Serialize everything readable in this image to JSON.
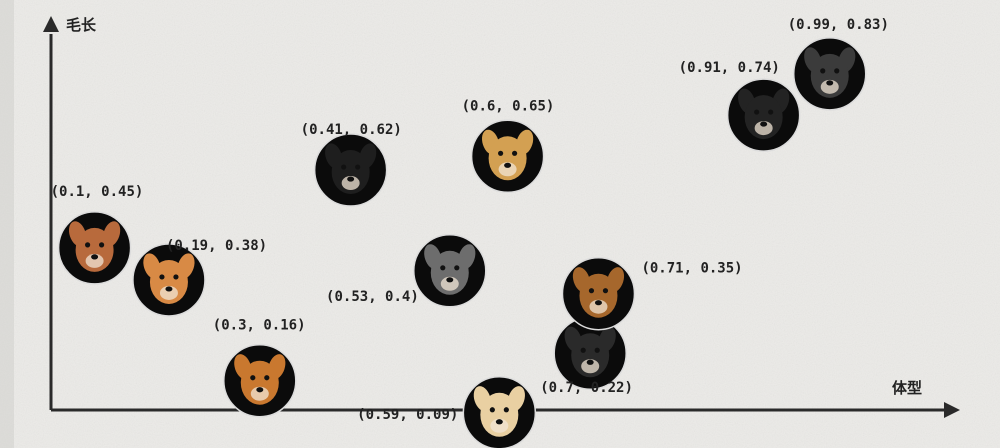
{
  "chart_data": {
    "type": "scatter",
    "xlabel": "体型",
    "ylabel": "毛长",
    "xlim": [
      0,
      1
    ],
    "ylim": [
      0,
      1
    ],
    "grid": false,
    "points": [
      {
        "label": "(0.1, 0.45)",
        "x": 0.1,
        "y": 0.45,
        "icon": "poodle-icon",
        "fur": "#b86a3c"
      },
      {
        "label": "(0.19, 0.38)",
        "x": 0.19,
        "y": 0.38,
        "icon": "corgi-icon",
        "fur": "#d88a45"
      },
      {
        "label": "(0.3, 0.16)",
        "x": 0.3,
        "y": 0.16,
        "icon": "shiba-icon",
        "fur": "#c9782f"
      },
      {
        "label": "(0.41, 0.62)",
        "x": 0.41,
        "y": 0.62,
        "icon": "border-collie-icon",
        "fur": "#1e1e1e"
      },
      {
        "label": "(0.53, 0.4)",
        "x": 0.53,
        "y": 0.4,
        "icon": "husky-icon",
        "fur": "#6d6d6d"
      },
      {
        "label": "(0.59, 0.09)",
        "x": 0.59,
        "y": 0.09,
        "icon": "labrador-icon",
        "fur": "#e9d0a2"
      },
      {
        "label": "(0.6, 0.65)",
        "x": 0.6,
        "y": 0.65,
        "icon": "golden-retriever-icon",
        "fur": "#d3a052"
      },
      {
        "label": "(0.7, 0.22)",
        "x": 0.7,
        "y": 0.22,
        "icon": "dog-icon",
        "fur": "#2a2a2a"
      },
      {
        "label": "(0.71, 0.35)",
        "x": 0.71,
        "y": 0.35,
        "icon": "german-shepherd-icon",
        "fur": "#a6672c"
      },
      {
        "label": "(0.91, 0.74)",
        "x": 0.91,
        "y": 0.74,
        "icon": "bernese-mountain-dog-icon",
        "fur": "#232323"
      },
      {
        "label": "(0.99, 0.83)",
        "x": 0.99,
        "y": 0.83,
        "icon": "tibetan-mastiff-icon",
        "fur": "#3b3b3b"
      }
    ]
  }
}
